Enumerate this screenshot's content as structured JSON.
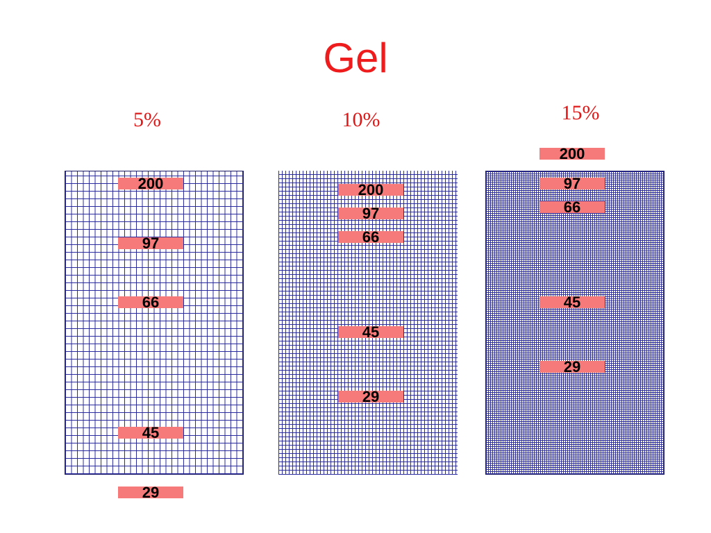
{
  "slide": {
    "title": "Gel",
    "gels": [
      {
        "percentage": "5%",
        "bands": [
          "200",
          "97",
          "66",
          "45",
          "29"
        ]
      },
      {
        "percentage": "10%",
        "bands": [
          "200",
          "97",
          "66",
          "45",
          "29"
        ]
      },
      {
        "percentage": "15%",
        "bands": [
          "200",
          "97",
          "66",
          "45",
          "29"
        ]
      }
    ]
  },
  "colors": {
    "title": "#ee1c1c",
    "percentage_label": "#dd1818",
    "band": "#f77a7a",
    "gel_mesh": "#2a2aa0",
    "band_text": "#000000"
  }
}
